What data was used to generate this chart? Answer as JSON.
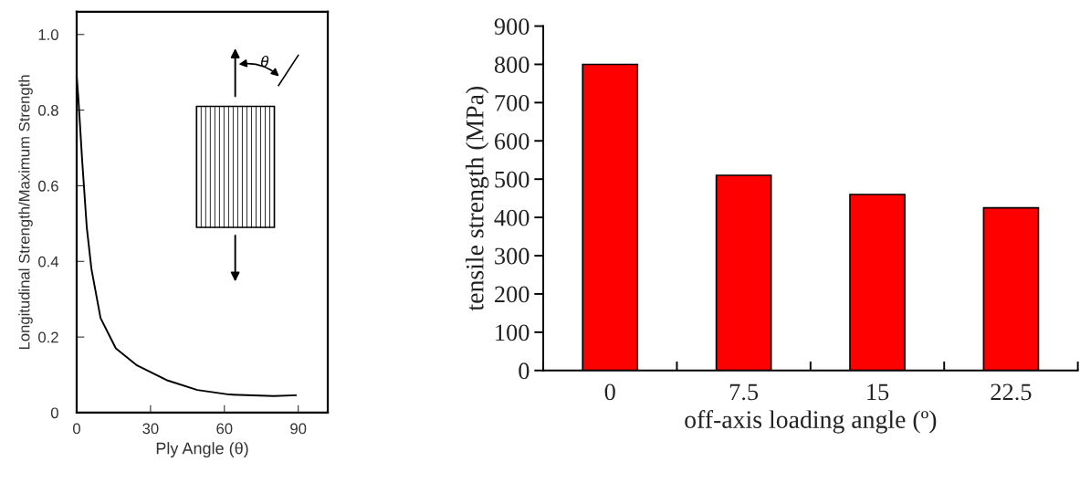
{
  "chart_data": [
    {
      "type": "line",
      "xlabel": "Ply Angle (θ)",
      "ylabel": "Longitudinal Strength/Maximum Strength",
      "x": [
        0,
        0.7,
        2.2,
        4.1,
        6,
        9.7,
        15.9,
        24.5,
        37,
        49,
        62,
        80,
        89
      ],
      "series": [
        {
          "color": "#000000",
          "values": [
            0.89,
            0.83,
            0.67,
            0.49,
            0.38,
            0.25,
            0.17,
            0.125,
            0.085,
            0.06,
            0.048,
            0.044,
            0.046
          ]
        }
      ],
      "xlim": [
        0,
        102
      ],
      "ylim": [
        0,
        1.06
      ],
      "xticks": [
        0,
        30,
        60,
        90
      ],
      "yticks": [
        0,
        0.2,
        0.4,
        0.6,
        0.8,
        {
          "value": 1.0,
          "label": "1.0"
        }
      ],
      "annotations": [
        "θ"
      ],
      "marker": "none",
      "line_style": "solid",
      "grid": false
    },
    {
      "type": "bar",
      "ylabel": "tensile strength (MPa)",
      "xlabel": "off-axis loading angle (º)",
      "categories": [
        "0",
        "7.5",
        "15",
        "22.5"
      ],
      "values": [
        800,
        510,
        460,
        425
      ],
      "color": "#ff0000",
      "ylim": [
        0,
        900
      ],
      "yticks": [
        0,
        100,
        200,
        300,
        400,
        500,
        600,
        700,
        800,
        900
      ],
      "grid": false
    }
  ]
}
